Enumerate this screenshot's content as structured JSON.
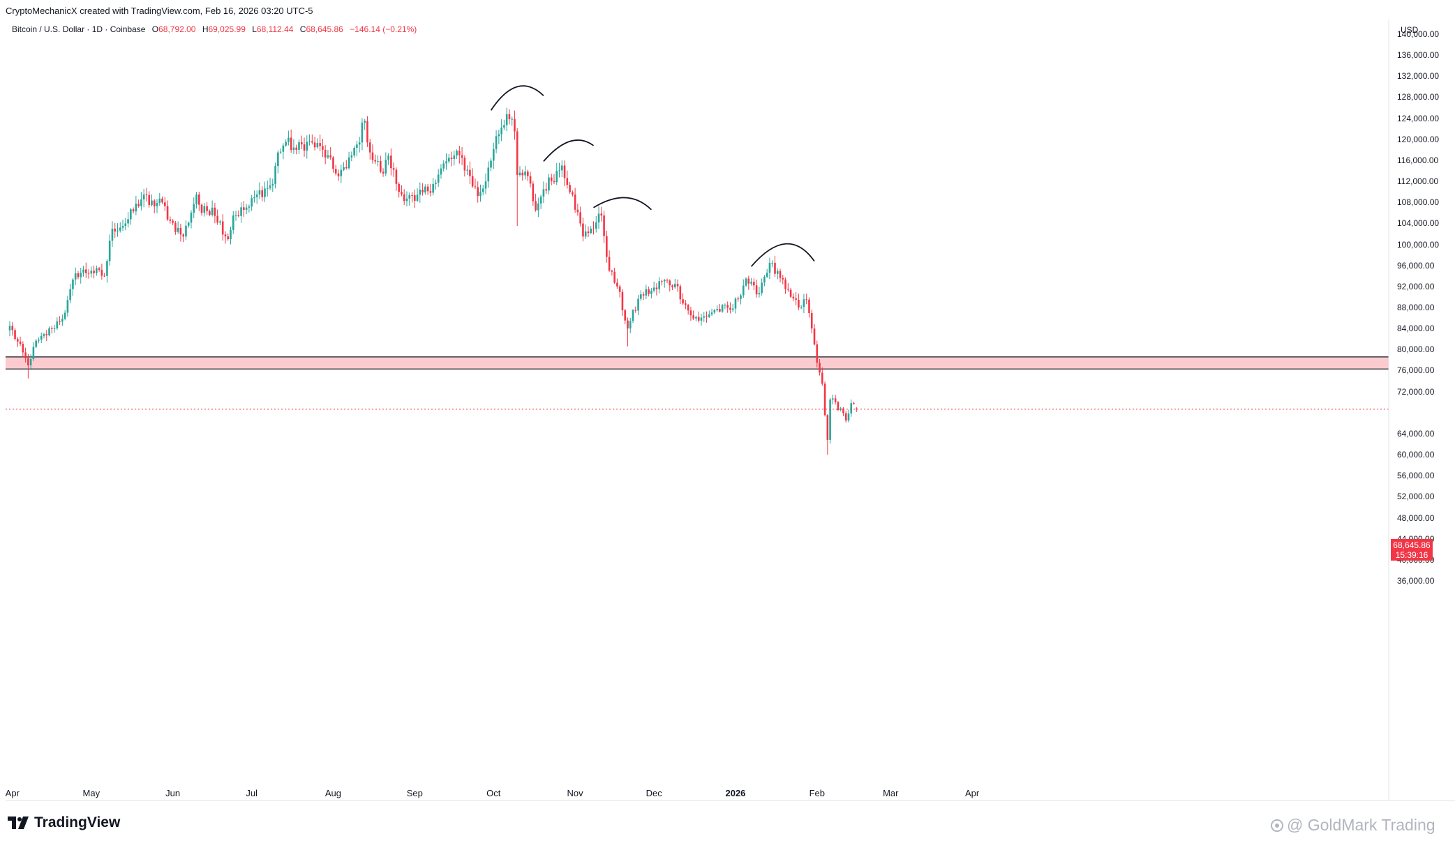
{
  "header": {
    "created_line": "CryptoMechanicX created with TradingView.com, Feb 16, 2026 03:20 UTC-5",
    "symbol_line": "Bitcoin / U.S. Dollar · 1D · Coinbase",
    "open_label": "O",
    "open_value": "68,792.00",
    "high_label": "H",
    "high_value": "69,025.99",
    "low_label": "L",
    "low_value": "68,112.44",
    "close_label": "C",
    "close_value": "68,645.86",
    "change": "−146.14 (−0.21%)"
  },
  "price_tag": {
    "price": "68,645.86",
    "countdown": "15:39:16"
  },
  "branding": {
    "logo_text": "TradingView",
    "watermark": "@ GoldMark Trading"
  },
  "colors": {
    "up": "#26a69a",
    "down": "#f23645",
    "zone_fill": "#fbcbd0",
    "annotation": "#131722"
  },
  "chart_data": {
    "type": "candlestick",
    "currency_label": "USD",
    "y_ticks": [
      "140,000.00",
      "136,000.00",
      "132,000.00",
      "128,000.00",
      "124,000.00",
      "120,000.00",
      "116,000.00",
      "112,000.00",
      "108,000.00",
      "104,000.00",
      "100,000.00",
      "96,000.00",
      "92,000.00",
      "88,000.00",
      "84,000.00",
      "80,000.00",
      "76,000.00",
      "72,000.00",
      "64,000.00",
      "60,000.00",
      "56,000.00",
      "52,000.00",
      "48,000.00",
      "44,000.00",
      "40,000.00",
      "36,000.00"
    ],
    "ylim": [
      34000,
      142000
    ],
    "x_ticks": [
      {
        "label": "Apr",
        "date": "2025-04-01"
      },
      {
        "label": "May",
        "date": "2025-05-01"
      },
      {
        "label": "Jun",
        "date": "2025-06-01"
      },
      {
        "label": "Jul",
        "date": "2025-07-01"
      },
      {
        "label": "Aug",
        "date": "2025-08-01"
      },
      {
        "label": "Sep",
        "date": "2025-09-01"
      },
      {
        "label": "Oct",
        "date": "2025-10-01"
      },
      {
        "label": "Nov",
        "date": "2025-11-01"
      },
      {
        "label": "Dec",
        "date": "2025-12-01"
      },
      {
        "label": "2026",
        "date": "2026-01-01",
        "bold": true
      },
      {
        "label": "Feb",
        "date": "2026-02-01"
      },
      {
        "label": "Mar",
        "date": "2026-03-01"
      },
      {
        "label": "Apr",
        "date": "2026-04-01"
      }
    ],
    "start_date": "2025-03-31",
    "last_price": 68645.86,
    "support_zone": [
      76300,
      78600
    ],
    "annotations": [
      {
        "type": "arc",
        "from": [
          "2025-09-30",
          125500
        ],
        "peak": [
          "2025-10-10",
          130000
        ],
        "to": [
          "2025-10-20",
          128300
        ]
      },
      {
        "type": "arc",
        "from": [
          "2025-10-20",
          115800
        ],
        "peak": [
          "2025-10-30",
          119600
        ],
        "to": [
          "2025-11-08",
          118800
        ]
      },
      {
        "type": "arc",
        "from": [
          "2025-11-08",
          107000
        ],
        "peak": [
          "2025-11-20",
          108900
        ],
        "to": [
          "2025-11-30",
          106600
        ]
      },
      {
        "type": "arc",
        "from": [
          "2026-01-07",
          95800
        ],
        "peak": [
          "2026-01-20",
          100100
        ],
        "to": [
          "2026-01-31",
          96800
        ]
      }
    ],
    "anchors": [
      [
        "2025-03-31",
        84500
      ],
      [
        "2025-04-07",
        77000
      ],
      [
        "2025-04-09",
        80500
      ],
      [
        "2025-04-16",
        84000
      ],
      [
        "2025-04-21",
        87000
      ],
      [
        "2025-04-25",
        94500
      ],
      [
        "2025-05-01",
        95000
      ],
      [
        "2025-05-06",
        94000
      ],
      [
        "2025-05-09",
        103000
      ],
      [
        "2025-05-14",
        104000
      ],
      [
        "2025-05-21",
        109500
      ],
      [
        "2025-05-23",
        107500
      ],
      [
        "2025-05-28",
        108000
      ],
      [
        "2025-05-31",
        104500
      ],
      [
        "2025-06-05",
        101500
      ],
      [
        "2025-06-10",
        109500
      ],
      [
        "2025-06-12",
        106000
      ],
      [
        "2025-06-16",
        107000
      ],
      [
        "2025-06-22",
        101000
      ],
      [
        "2025-06-24",
        105500
      ],
      [
        "2025-06-30",
        107200
      ],
      [
        "2025-07-03",
        109500
      ],
      [
        "2025-07-09",
        111500
      ],
      [
        "2025-07-11",
        117500
      ],
      [
        "2025-07-14",
        119500
      ],
      [
        "2025-07-18",
        118000
      ],
      [
        "2025-07-22",
        119500
      ],
      [
        "2025-07-28",
        118000
      ],
      [
        "2025-08-02",
        113500
      ],
      [
        "2025-08-06",
        114500
      ],
      [
        "2025-08-10",
        119000
      ],
      [
        "2025-08-13",
        123500
      ],
      [
        "2025-08-15",
        117500
      ],
      [
        "2025-08-20",
        113500
      ],
      [
        "2025-08-22",
        116900
      ],
      [
        "2025-08-26",
        110000
      ],
      [
        "2025-09-01",
        108300
      ],
      [
        "2025-09-08",
        111500
      ],
      [
        "2025-09-13",
        115800
      ],
      [
        "2025-09-18",
        117000
      ],
      [
        "2025-09-22",
        113000
      ],
      [
        "2025-09-25",
        109200
      ],
      [
        "2025-09-28",
        112000
      ],
      [
        "2025-10-02",
        120600
      ],
      [
        "2025-10-06",
        124800
      ],
      [
        "2025-10-09",
        121500
      ],
      [
        "2025-10-10",
        113200
      ],
      [
        "2025-10-14",
        113000
      ],
      [
        "2025-10-17",
        106500
      ],
      [
        "2025-10-20",
        110500
      ],
      [
        "2025-10-27",
        115000
      ],
      [
        "2025-10-31",
        109500
      ],
      [
        "2025-11-04",
        101500
      ],
      [
        "2025-11-07",
        103000
      ],
      [
        "2025-11-11",
        105500
      ],
      [
        "2025-11-14",
        95000
      ],
      [
        "2025-11-17",
        92000
      ],
      [
        "2025-11-21",
        84000
      ],
      [
        "2025-11-26",
        90500
      ],
      [
        "2025-12-02",
        91500
      ],
      [
        "2025-12-03",
        93000
      ],
      [
        "2025-12-09",
        92500
      ],
      [
        "2025-12-15",
        86500
      ],
      [
        "2025-12-18",
        85500
      ],
      [
        "2025-12-24",
        87500
      ],
      [
        "2025-12-31",
        87800
      ],
      [
        "2026-01-05",
        93500
      ],
      [
        "2026-01-09",
        90500
      ],
      [
        "2026-01-14",
        96500
      ],
      [
        "2026-01-20",
        91500
      ],
      [
        "2026-01-25",
        88000
      ],
      [
        "2026-01-28",
        89500
      ],
      [
        "2026-01-30",
        84000
      ],
      [
        "2026-02-01",
        77500
      ],
      [
        "2026-02-03",
        73500
      ],
      [
        "2026-02-05",
        62800
      ],
      [
        "2026-02-06",
        70500
      ],
      [
        "2026-02-10",
        68800
      ],
      [
        "2026-02-12",
        66500
      ],
      [
        "2026-02-14",
        69800
      ],
      [
        "2026-02-16",
        68645.86
      ]
    ]
  }
}
